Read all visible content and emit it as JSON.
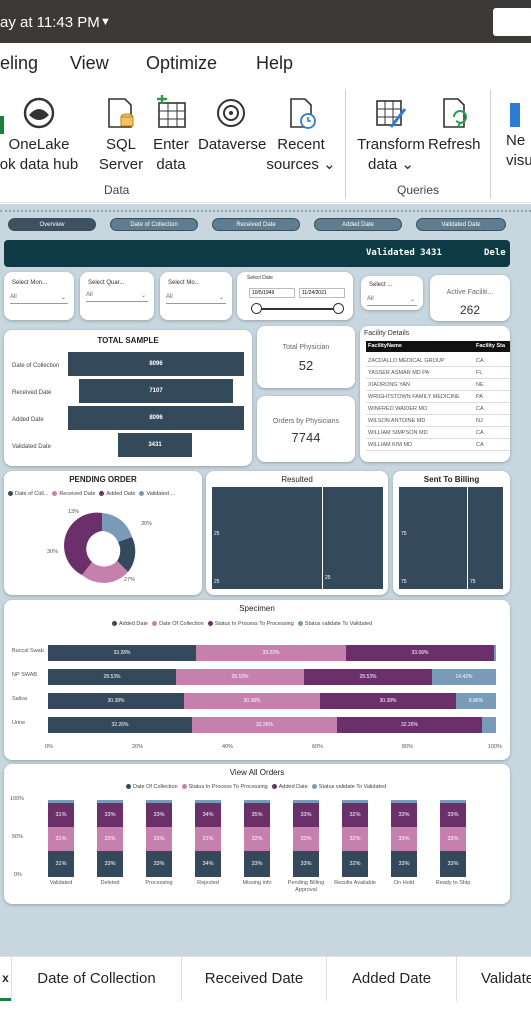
{
  "window": {
    "title": "ay at 11:43 PM"
  },
  "menu": {
    "items": [
      "eling",
      "View",
      "Optimize",
      "Help"
    ]
  },
  "ribbon": {
    "onelake": [
      "OneLake",
      "ok data hub"
    ],
    "sql": [
      "SQL",
      "Server"
    ],
    "enter": [
      "Enter",
      "data"
    ],
    "dataverse": "Dataverse",
    "recent": [
      "Recent",
      "sources"
    ],
    "transform": [
      "Transform",
      "data"
    ],
    "refresh": "Refresh",
    "new": [
      "Ne",
      "visu"
    ],
    "group_data": "Data",
    "group_queries": "Queries"
  },
  "nav": {
    "buttons": [
      "Overview",
      "Date of Collection",
      "Received Date",
      "Added Date",
      "Validated Date"
    ]
  },
  "banner": {
    "text": "Validated 3431",
    "text2": "Dele"
  },
  "slicers": {
    "month1": {
      "label": "Select Mon...",
      "value": "All"
    },
    "quarter": {
      "label": "Select Quar...",
      "value": "All"
    },
    "month2": {
      "label": "Select Mo...",
      "value": "All"
    },
    "date": {
      "label": "Select Date",
      "from": "10/5/1949",
      "to": "11/24/2021"
    },
    "select": {
      "label": "Select ...",
      "value": "All"
    }
  },
  "kpi": {
    "active_label": "Active Faciliti...",
    "active_value": "262",
    "physician_label": "Total Physician",
    "physician_value": "52",
    "orders_label": "Orders by Physicians",
    "orders_value": "7744"
  },
  "total_sample": {
    "title": "TOTAL SAMPLE",
    "rows": [
      {
        "label": "Date of Collection",
        "value": "8096"
      },
      {
        "label": "Received Date",
        "value": "7107"
      },
      {
        "label": "Added Date",
        "value": "8096"
      },
      {
        "label": "Validated Date",
        "value": "3431"
      }
    ]
  },
  "facility": {
    "title": "Facility Details",
    "headers": [
      "FacilityName",
      "Facility Sta"
    ],
    "rows": [
      [
        "ZACDALLO MEDICAL GROUP",
        "CA"
      ],
      [
        "YASSER ASMAR MD PA",
        "FL"
      ],
      [
        "XIAORONG YAN",
        "NE"
      ],
      [
        "WRIGHTSTOWN FAMILY MEDICINE",
        "PA"
      ],
      [
        "WINFRED WAIDER MD",
        "CA"
      ],
      [
        "WILSON ANTOINE MD",
        "NJ"
      ],
      [
        "WILLIAM SIMPSON MD",
        "CA"
      ],
      [
        "WILLIAM KIM MD",
        "CA"
      ]
    ]
  },
  "pending": {
    "title": "PENDING ORDER",
    "legend": [
      "Date of Coll...",
      "Received Date",
      "Added Date",
      "Validated ..."
    ],
    "labels": [
      "13%",
      "30%",
      "27%",
      "30%"
    ],
    "colors": [
      "#344a5c",
      "#c580ad",
      "#6b2f69",
      "#7a9bb8"
    ]
  },
  "resulted": {
    "title": "Resulted",
    "labels": [
      "25",
      "25",
      "25"
    ]
  },
  "billing": {
    "title": "Sent To Billing",
    "labels": [
      "75",
      "75",
      "75"
    ]
  },
  "specimen": {
    "title": "Specimen",
    "legend": [
      "Added Date",
      "Date Of Collection",
      "Status In Process To Processing",
      "Status validate To Validated"
    ],
    "rows": [
      {
        "name": "Buccal Swab",
        "labels": [
          "33.28%",
          "33.22%",
          "33.06%",
          ""
        ]
      },
      {
        "name": "NP SWAB",
        "labels": [
          "28.53%",
          "28.53%",
          "28.53%",
          "14.42%"
        ]
      },
      {
        "name": "Saliva",
        "labels": [
          "30.38%",
          "30.38%",
          "30.38%",
          "8.86%"
        ]
      },
      {
        "name": "Urine",
        "labels": [
          "32.26%",
          "32.26%",
          "32.26%",
          ""
        ]
      }
    ],
    "axis": [
      "0%",
      "20%",
      "40%",
      "60%",
      "80%",
      "100%"
    ]
  },
  "view_all": {
    "title": "View All Orders",
    "legend": [
      "Date Of Collection",
      "Status In Process To Processing",
      "Added Date",
      "Status validate To Validated"
    ],
    "yaxis": [
      "100%",
      "50%",
      "0%"
    ],
    "categories": [
      "Validated",
      "Deleted",
      "Processing",
      "Rejected",
      "Missing info",
      "Pending Billing Approval",
      "Results Available",
      "On Hold",
      "Ready to Ship"
    ],
    "labels": [
      [
        "31%",
        "31%",
        "31%"
      ],
      [
        "33%",
        "33%",
        "33%"
      ],
      [
        "33%",
        "33%",
        "33%"
      ],
      [
        "34%",
        "31%",
        "34%"
      ],
      [
        "35%",
        "32%",
        "33%"
      ],
      [
        "33%",
        "33%",
        "33%"
      ],
      [
        "32%",
        "32%",
        "32%"
      ],
      [
        "33%",
        "33%",
        "33%"
      ],
      [
        "33%",
        "33%",
        "33%"
      ]
    ]
  },
  "tabs": {
    "items": [
      "x",
      "Date of Collection",
      "Received Date",
      "Added Date",
      "Validate"
    ]
  },
  "colors": {
    "navy": "#344a5c",
    "pink": "#c580ad",
    "purple": "#6b2f69",
    "steel": "#7a9bb8",
    "canvas": "#c7d6df"
  }
}
